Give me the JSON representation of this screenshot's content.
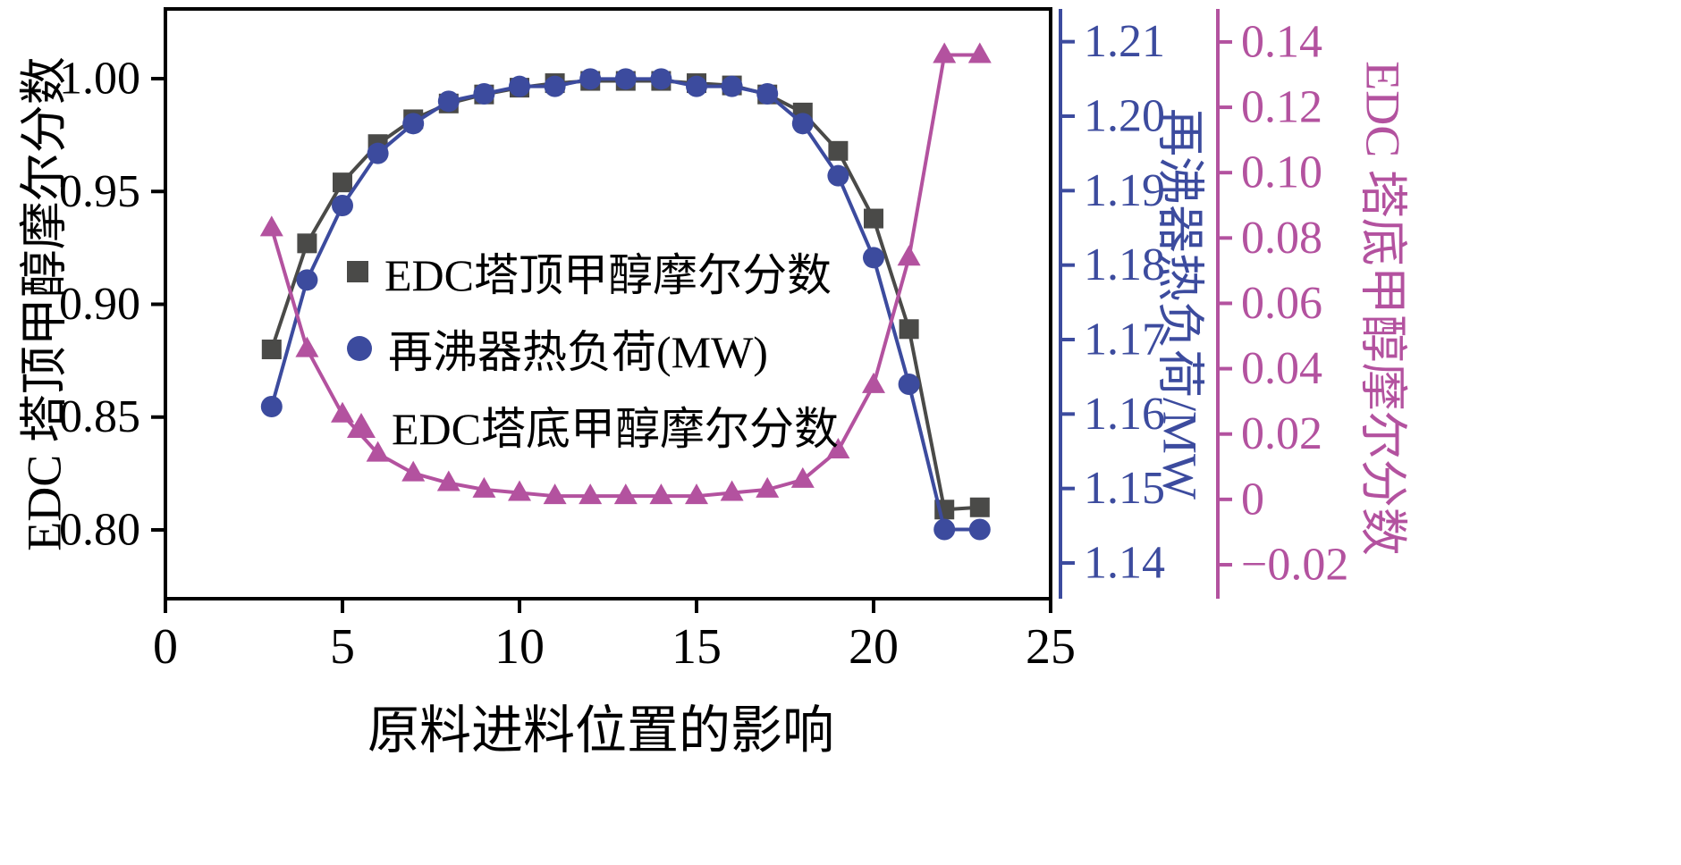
{
  "chart_data": {
    "type": "line",
    "title": "",
    "grid": false,
    "x": [
      3,
      4,
      5,
      6,
      7,
      8,
      9,
      10,
      11,
      12,
      13,
      14,
      15,
      16,
      17,
      18,
      19,
      20,
      21,
      22,
      23
    ],
    "series": [
      {
        "name": "EDC塔顶甲醇摩尔分数",
        "axis": "left",
        "marker": "square",
        "color": "#4a4a48",
        "values": [
          0.88,
          0.927,
          0.954,
          0.971,
          0.982,
          0.989,
          0.993,
          0.996,
          0.998,
          0.999,
          0.999,
          0.999,
          0.998,
          0.997,
          0.993,
          0.985,
          0.968,
          0.938,
          0.889,
          0.809,
          0.81
        ]
      },
      {
        "name": "再沸器热负荷(MW)",
        "axis": "right_blue",
        "marker": "circle",
        "color": "#3c4b9e",
        "values": [
          1.161,
          1.178,
          1.188,
          1.195,
          1.199,
          1.202,
          1.203,
          1.204,
          1.204,
          1.205,
          1.205,
          1.205,
          1.204,
          1.204,
          1.203,
          1.199,
          1.192,
          1.181,
          1.164,
          1.1445,
          1.1445
        ]
      },
      {
        "name": "EDC塔底甲醇摩尔分数",
        "axis": "right_purple",
        "marker": "triangle",
        "color": "#b3529f",
        "values": [
          0.083,
          0.046,
          0.026,
          0.014,
          0.008,
          0.005,
          0.003,
          0.002,
          0.001,
          0.001,
          0.001,
          0.001,
          0.001,
          0.002,
          0.003,
          0.006,
          0.015,
          0.035,
          0.074,
          0.136,
          0.136
        ]
      }
    ],
    "x_axis": {
      "label": "原料进料位置的影响",
      "min": 0,
      "max": 25,
      "ticks": [
        0,
        5,
        10,
        15,
        20,
        25
      ],
      "tick_labels": [
        "0",
        "5",
        "10",
        "15",
        "20",
        "25"
      ],
      "color": "#000000"
    },
    "left_axis": {
      "label": "EDC 塔顶甲醇摩尔分数",
      "min": 0.7695,
      "max": 1.0309,
      "ticks": [
        0.8,
        0.85,
        0.9,
        0.95,
        1.0
      ],
      "tick_labels": [
        "0.80",
        "0.85",
        "0.90",
        "0.95",
        "1.00"
      ],
      "color": "#000000"
    },
    "right_axis_blue": {
      "label": "再沸器热负荷/MW",
      "min": 1.1352,
      "max": 1.2144,
      "ticks": [
        1.14,
        1.15,
        1.16,
        1.17,
        1.18,
        1.19,
        1.2,
        1.21
      ],
      "tick_labels": [
        "1.14",
        "1.15",
        "1.16",
        "1.17",
        "1.18",
        "1.19",
        "1.20",
        "1.21"
      ],
      "color": "#3c4b9e"
    },
    "right_axis_purple": {
      "label": "EDC 塔底甲醇摩尔分数",
      "min": -0.0304,
      "max": 0.1501,
      "ticks": [
        -0.02,
        0,
        0.02,
        0.04,
        0.06,
        0.08,
        0.1,
        0.12,
        0.14
      ],
      "tick_labels": [
        "−0.02",
        "0",
        "0.02",
        "0.04",
        "0.06",
        "0.08",
        "0.10",
        "0.12",
        "0.14"
      ],
      "color": "#b3529f"
    },
    "legend": {
      "position": "inside-center-left",
      "items": [
        {
          "label": "EDC塔顶甲醇摩尔分数",
          "marker": "square",
          "color": "#4a4a48"
        },
        {
          "label": "再沸器热负荷(MW)",
          "marker": "circle",
          "color": "#3c4b9e"
        },
        {
          "label": "EDC塔底甲醇摩尔分数",
          "marker": "triangle",
          "color": "#b3529f"
        }
      ]
    }
  }
}
